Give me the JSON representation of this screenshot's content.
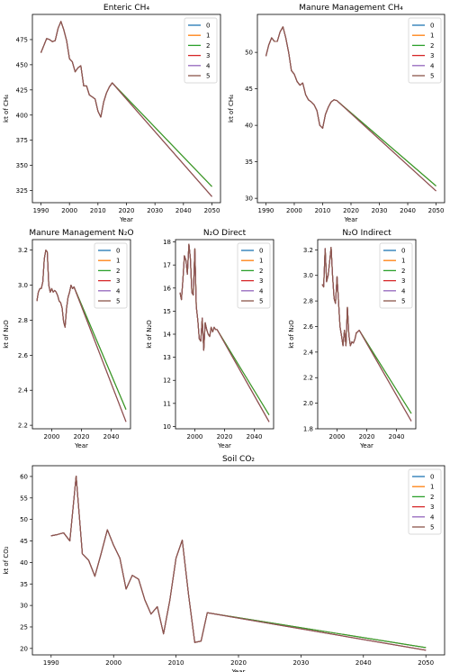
{
  "series_colors": [
    "#1f77b4",
    "#ff7f0e",
    "#2ca02c",
    "#d62728",
    "#9467bd",
    "#8c564b"
  ],
  "chart_data": [
    {
      "type": "line",
      "title": "Enteric CH₄",
      "xlabel": "Year",
      "ylabel": "kt of CH₄",
      "xlim": [
        1987,
        2053
      ],
      "ylim": [
        313,
        500
      ],
      "xticks": [
        1990,
        2000,
        2010,
        2020,
        2030,
        2040,
        2050
      ],
      "yticks": [
        325,
        350,
        375,
        400,
        425,
        450,
        475
      ],
      "legend": [
        "0",
        "1",
        "2",
        "3",
        "4",
        "5"
      ],
      "legend_position": "top-right",
      "history": {
        "x": [
          1990,
          1991,
          1992,
          1993,
          1994,
          1995,
          1996,
          1997,
          1998,
          1999,
          2000,
          2001,
          2002,
          2003,
          2004,
          2005,
          2006,
          2007,
          2008,
          2009,
          2010,
          2011,
          2012,
          2013,
          2014,
          2015
        ],
        "y": [
          462,
          469,
          476,
          475,
          473,
          474,
          486,
          493,
          485,
          474,
          456,
          453,
          443,
          447,
          449,
          429,
          429,
          420,
          418,
          416,
          404,
          398,
          413,
          422,
          428,
          432
        ]
      },
      "projection_start": [
        2015,
        432
      ],
      "projection_end_values": [
        329,
        329,
        329,
        319,
        319,
        319
      ]
    },
    {
      "type": "line",
      "title": "Manure Management CH₄",
      "xlabel": "Year",
      "ylabel": "kt of CH₄",
      "xlim": [
        1987,
        2053
      ],
      "ylim": [
        29.4,
        55.2
      ],
      "xticks": [
        1990,
        2000,
        2010,
        2020,
        2030,
        2040,
        2050
      ],
      "yticks": [
        30,
        35,
        40,
        45,
        50
      ],
      "legend": [
        "0",
        "1",
        "2",
        "3",
        "4",
        "5"
      ],
      "legend_position": "top-right",
      "history": {
        "x": [
          1990,
          1991,
          1992,
          1993,
          1994,
          1995,
          1996,
          1997,
          1998,
          1999,
          2000,
          2001,
          2002,
          2003,
          2004,
          2005,
          2006,
          2007,
          2008,
          2009,
          2010,
          2011,
          2012,
          2013,
          2014,
          2015
        ],
        "y": [
          49.5,
          51.0,
          52.0,
          51.5,
          51.5,
          52.8,
          53.5,
          52.0,
          50.0,
          47.5,
          47.0,
          46.0,
          45.5,
          45.8,
          44.2,
          43.5,
          43.2,
          42.8,
          42.0,
          40.0,
          39.6,
          41.5,
          42.5,
          43.2,
          43.5,
          43.4
        ]
      },
      "projection_start": [
        2015,
        43.4
      ],
      "projection_end_values": [
        31.7,
        31.7,
        31.7,
        31.0,
        31.0,
        31.0
      ]
    },
    {
      "type": "line",
      "title": "Manure Management N₂O",
      "xlabel": "Year",
      "ylabel": "kt of N₂O",
      "xlim": [
        1987,
        2053
      ],
      "ylim": [
        2.18,
        3.26
      ],
      "xticks": [
        2000,
        2020,
        2040
      ],
      "yticks": [
        2.2,
        2.4,
        2.6,
        2.8,
        3.0,
        3.2
      ],
      "legend": [
        "0",
        "1",
        "2",
        "3",
        "4",
        "5"
      ],
      "legend_position": "top-right",
      "history": {
        "x": [
          1990,
          1991,
          1992,
          1993,
          1994,
          1995,
          1996,
          1997,
          1998,
          1999,
          2000,
          2001,
          2002,
          2003,
          2004,
          2005,
          2006,
          2007,
          2008,
          2009,
          2010,
          2011,
          2012,
          2013,
          2014,
          2015
        ],
        "y": [
          2.91,
          2.96,
          2.98,
          2.98,
          3.02,
          3.15,
          3.2,
          3.19,
          3.0,
          2.96,
          2.98,
          2.96,
          2.97,
          2.96,
          2.94,
          2.91,
          2.9,
          2.87,
          2.79,
          2.76,
          2.87,
          2.93,
          2.96,
          3.0,
          2.98,
          2.99
        ]
      },
      "projection_start": [
        2015,
        2.99
      ],
      "projection_end_values": [
        2.29,
        2.29,
        2.29,
        2.22,
        2.22,
        2.22
      ]
    },
    {
      "type": "line",
      "title": "N₂O Direct",
      "xlabel": "Year",
      "ylabel": "kt of N₂O",
      "xlim": [
        1987,
        2053
      ],
      "ylim": [
        9.9,
        18.1
      ],
      "xticks": [
        2000,
        2020,
        2040
      ],
      "yticks": [
        10,
        11,
        12,
        13,
        14,
        15,
        16,
        17,
        18
      ],
      "legend": [
        "0",
        "1",
        "2",
        "3",
        "4",
        "5"
      ],
      "legend_position": "top-right",
      "history": {
        "x": [
          1990,
          1991,
          1992,
          1993,
          1994,
          1995,
          1996,
          1997,
          1998,
          1999,
          2000,
          2001,
          2002,
          2003,
          2004,
          2005,
          2006,
          2007,
          2008,
          2009,
          2010,
          2011,
          2012,
          2013,
          2014,
          2015
        ],
        "y": [
          15.8,
          15.5,
          16.4,
          17.4,
          17.2,
          16.6,
          17.9,
          17.3,
          15.8,
          15.7,
          17.7,
          15.2,
          14.6,
          13.8,
          13.7,
          14.7,
          13.3,
          14.5,
          14.2,
          14.0,
          13.9,
          14.3,
          14.1,
          14.3,
          14.2,
          14.2
        ]
      },
      "projection_start": [
        2015,
        14.2
      ],
      "projection_end_values": [
        10.5,
        10.5,
        10.5,
        10.2,
        10.2,
        10.2
      ]
    },
    {
      "type": "line",
      "title": "N₂O Indirect",
      "xlabel": "Year",
      "ylabel": "kt of N₂O",
      "xlim": [
        1987,
        2053
      ],
      "ylim": [
        1.8,
        3.28
      ],
      "xticks": [
        2000,
        2020,
        2040
      ],
      "yticks": [
        1.8,
        2.0,
        2.2,
        2.4,
        2.6,
        2.8,
        3.0,
        3.2
      ],
      "legend": [
        "0",
        "1",
        "2",
        "3",
        "4",
        "5"
      ],
      "legend_position": "top-right",
      "history": {
        "x": [
          1990,
          1991,
          1992,
          1993,
          1994,
          1995,
          1996,
          1997,
          1998,
          1999,
          2000,
          2001,
          2002,
          2003,
          2004,
          2005,
          2006,
          2007,
          2008,
          2009,
          2010,
          2011,
          2012,
          2013,
          2014,
          2015
        ],
        "y": [
          2.93,
          2.91,
          3.21,
          2.95,
          3.0,
          3.1,
          3.22,
          3.0,
          2.82,
          2.78,
          2.99,
          2.8,
          2.6,
          2.53,
          2.45,
          2.57,
          2.45,
          2.75,
          2.53,
          2.45,
          2.48,
          2.47,
          2.5,
          2.55,
          2.56,
          2.57
        ]
      },
      "projection_start": [
        2015,
        2.57
      ],
      "projection_end_values": [
        1.92,
        1.92,
        1.92,
        1.86,
        1.86,
        1.86
      ]
    },
    {
      "type": "line",
      "title": "Soil CO₂",
      "xlabel": "Year",
      "ylabel": "kt of CO₂",
      "xlim": [
        1987,
        2053
      ],
      "ylim": [
        18.5,
        62.5
      ],
      "xticks": [
        1990,
        2000,
        2010,
        2020,
        2030,
        2040,
        2050
      ],
      "yticks": [
        20,
        25,
        30,
        35,
        40,
        45,
        50,
        55,
        60
      ],
      "legend": [
        "0",
        "1",
        "2",
        "3",
        "4",
        "5"
      ],
      "legend_position": "top-right",
      "history": {
        "x": [
          1990,
          1991,
          1992,
          1993,
          1994,
          1995,
          1996,
          1997,
          1998,
          1999,
          2000,
          2001,
          2002,
          2003,
          2004,
          2005,
          2006,
          2007,
          2008,
          2009,
          2010,
          2011,
          2012,
          2013,
          2014,
          2015
        ],
        "y": [
          46.2,
          46.5,
          46.9,
          45.0,
          60.1,
          42.0,
          40.5,
          36.8,
          42.0,
          47.6,
          44.0,
          41.0,
          33.8,
          37.0,
          36.1,
          31.3,
          28.0,
          29.7,
          23.4,
          31.2,
          41.0,
          45.2,
          32.5,
          21.4,
          21.7,
          28.3
        ]
      },
      "projection_start": [
        2015,
        28.3
      ],
      "projection_end_values": [
        20.2,
        20.2,
        20.2,
        19.6,
        19.6,
        19.6
      ]
    }
  ]
}
